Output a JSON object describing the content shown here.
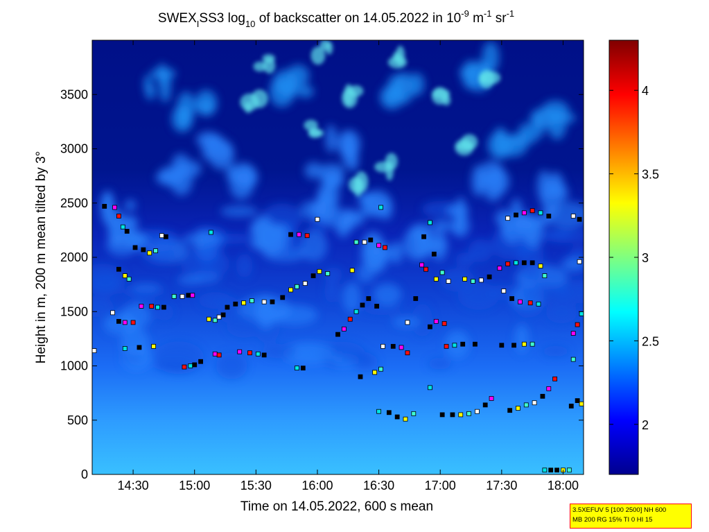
{
  "chart_data": {
    "type": "heatmap",
    "title": {
      "prefix": "SWEX",
      "sub": "I",
      "mid": "SS3 log",
      "log_base": "10",
      "rest": " of backscatter on 14.05.2022 in 10",
      "exp1": "-9",
      "unit1": " m",
      "exp2": "-1",
      "unit2": " sr",
      "exp3": "-1"
    },
    "xlabel": "Time on 14.05.2022, 600 s mean",
    "ylabel": "Height in m, 200 m mean tilted by 3°",
    "x_range": [
      "14:10",
      "18:10"
    ],
    "x_ticks": [
      "14:30",
      "15:00",
      "15:30",
      "16:00",
      "16:30",
      "17:00",
      "17:30",
      "18:00"
    ],
    "y_range": [
      0,
      4000
    ],
    "y_ticks": [
      0,
      500,
      1000,
      1500,
      2000,
      2500,
      3000,
      3500
    ],
    "colorbar": {
      "range": [
        1.7,
        4.3
      ],
      "ticks": [
        "2",
        "2.5",
        "3",
        "3.5",
        "4"
      ],
      "colormap": "jet"
    },
    "marker_series": {
      "marker": "square",
      "points": [
        [
          "14:11",
          1140
        ],
        [
          "14:16",
          2470
        ],
        [
          "14:21",
          2460
        ],
        [
          "14:23",
          2380
        ],
        [
          "14:25",
          2280
        ],
        [
          "14:27",
          2240
        ],
        [
          "14:23",
          1890
        ],
        [
          "14:26",
          1830
        ],
        [
          "14:28",
          1800
        ],
        [
          "14:20",
          1490
        ],
        [
          "14:23",
          1410
        ],
        [
          "14:26",
          1400
        ],
        [
          "14:30",
          1400
        ],
        [
          "14:26",
          1160
        ],
        [
          "14:31",
          2090
        ],
        [
          "14:35",
          2070
        ],
        [
          "14:38",
          2040
        ],
        [
          "14:41",
          2060
        ],
        [
          "14:44",
          2200
        ],
        [
          "14:46",
          2190
        ],
        [
          "14:34",
          1550
        ],
        [
          "14:39",
          1550
        ],
        [
          "14:42",
          1540
        ],
        [
          "14:45",
          1540
        ],
        [
          "14:33",
          1170
        ],
        [
          "14:40",
          1180
        ],
        [
          "14:50",
          1640
        ],
        [
          "14:54",
          1640
        ],
        [
          "14:57",
          1650
        ],
        [
          "14:59",
          1650
        ],
        [
          "14:55",
          990
        ],
        [
          "14:58",
          1000
        ],
        [
          "15:00",
          1010
        ],
        [
          "15:03",
          1040
        ],
        [
          "15:07",
          1430
        ],
        [
          "15:10",
          1420
        ],
        [
          "15:12",
          1450
        ],
        [
          "15:14",
          1470
        ],
        [
          "15:10",
          1110
        ],
        [
          "15:12",
          1100
        ],
        [
          "15:08",
          2230
        ],
        [
          "15:16",
          1540
        ],
        [
          "15:20",
          1570
        ],
        [
          "15:24",
          1580
        ],
        [
          "15:28",
          1600
        ],
        [
          "15:34",
          1590
        ],
        [
          "15:38",
          1590
        ],
        [
          "15:22",
          1130
        ],
        [
          "15:27",
          1120
        ],
        [
          "15:31",
          1110
        ],
        [
          "15:34",
          1100
        ],
        [
          "15:43",
          1630
        ],
        [
          "15:47",
          1700
        ],
        [
          "15:50",
          1730
        ],
        [
          "15:54",
          1760
        ],
        [
          "15:47",
          2210
        ],
        [
          "15:51",
          2210
        ],
        [
          "15:55",
          2200
        ],
        [
          "15:50",
          980
        ],
        [
          "15:53",
          980
        ],
        [
          "15:58",
          1830
        ],
        [
          "16:01",
          1870
        ],
        [
          "16:05",
          1850
        ],
        [
          "16:00",
          2350
        ],
        [
          "16:10",
          1290
        ],
        [
          "16:13",
          1340
        ],
        [
          "16:16",
          1430
        ],
        [
          "16:19",
          1500
        ],
        [
          "16:22",
          1560
        ],
        [
          "16:25",
          1620
        ],
        [
          "16:17",
          1880
        ],
        [
          "16:19",
          2140
        ],
        [
          "16:23",
          2140
        ],
        [
          "16:26",
          2160
        ],
        [
          "16:30",
          2110
        ],
        [
          "16:33",
          2090
        ],
        [
          "16:31",
          2460
        ],
        [
          "16:29",
          1550
        ],
        [
          "16:21",
          900
        ],
        [
          "16:28",
          940
        ],
        [
          "16:31",
          970
        ],
        [
          "16:32",
          1180
        ],
        [
          "16:37",
          1180
        ],
        [
          "16:41",
          1170
        ],
        [
          "16:44",
          1120
        ],
        [
          "16:30",
          580
        ],
        [
          "16:35",
          570
        ],
        [
          "16:39",
          530
        ],
        [
          "16:43",
          510
        ],
        [
          "16:47",
          560
        ],
        [
          "16:44",
          1400
        ],
        [
          "16:48",
          1620
        ],
        [
          "16:51",
          1930
        ],
        [
          "16:53",
          1890
        ],
        [
          "16:55",
          2320
        ],
        [
          "16:52",
          2190
        ],
        [
          "16:57",
          2030
        ],
        [
          "16:58",
          1800
        ],
        [
          "17:01",
          1860
        ],
        [
          "17:04",
          1780
        ],
        [
          "16:55",
          1360
        ],
        [
          "16:58",
          1410
        ],
        [
          "17:02",
          1390
        ],
        [
          "16:55",
          800
        ],
        [
          "17:01",
          550
        ],
        [
          "17:06",
          550
        ],
        [
          "17:10",
          550
        ],
        [
          "17:14",
          560
        ],
        [
          "17:18",
          580
        ],
        [
          "17:22",
          640
        ],
        [
          "17:25",
          700
        ],
        [
          "17:03",
          1180
        ],
        [
          "17:07",
          1190
        ],
        [
          "17:11",
          1200
        ],
        [
          "17:17",
          1200
        ],
        [
          "17:12",
          1800
        ],
        [
          "17:16",
          1780
        ],
        [
          "17:20",
          1790
        ],
        [
          "17:24",
          1820
        ],
        [
          "17:29",
          1900
        ],
        [
          "17:33",
          1940
        ],
        [
          "17:37",
          1950
        ],
        [
          "17:41",
          1950
        ],
        [
          "17:45",
          1950
        ],
        [
          "17:49",
          1920
        ],
        [
          "17:51",
          1830
        ],
        [
          "17:31",
          1690
        ],
        [
          "17:35",
          1620
        ],
        [
          "17:39",
          1590
        ],
        [
          "17:44",
          1580
        ],
        [
          "17:48",
          1570
        ],
        [
          "17:30",
          1190
        ],
        [
          "17:36",
          1190
        ],
        [
          "17:41",
          1200
        ],
        [
          "17:45",
          1200
        ],
        [
          "17:33",
          2360
        ],
        [
          "17:37",
          2390
        ],
        [
          "17:41",
          2410
        ],
        [
          "17:45",
          2430
        ],
        [
          "17:49",
          2410
        ],
        [
          "17:53",
          2380
        ],
        [
          "17:34",
          590
        ],
        [
          "17:38",
          610
        ],
        [
          "17:42",
          640
        ],
        [
          "17:46",
          660
        ],
        [
          "17:50",
          720
        ],
        [
          "17:53",
          790
        ],
        [
          "17:56",
          880
        ],
        [
          "17:51",
          40
        ],
        [
          "17:54",
          40
        ],
        [
          "17:57",
          40
        ],
        [
          "18:00",
          40
        ],
        [
          "18:03",
          40
        ],
        [
          "18:05",
          2380
        ],
        [
          "18:08",
          2350
        ],
        [
          "18:05",
          1300
        ],
        [
          "18:07",
          1380
        ],
        [
          "18:09",
          1480
        ],
        [
          "18:04",
          630
        ],
        [
          "18:07",
          680
        ],
        [
          "18:09",
          650
        ],
        [
          "18:05",
          1060
        ],
        [
          "18:08",
          1960
        ]
      ]
    }
  },
  "info_box": {
    "line1": "3.5XEFUV 5 [100 2500] NH 600",
    "line2": "MB 200 RG 15% TI 0 HI 15"
  }
}
